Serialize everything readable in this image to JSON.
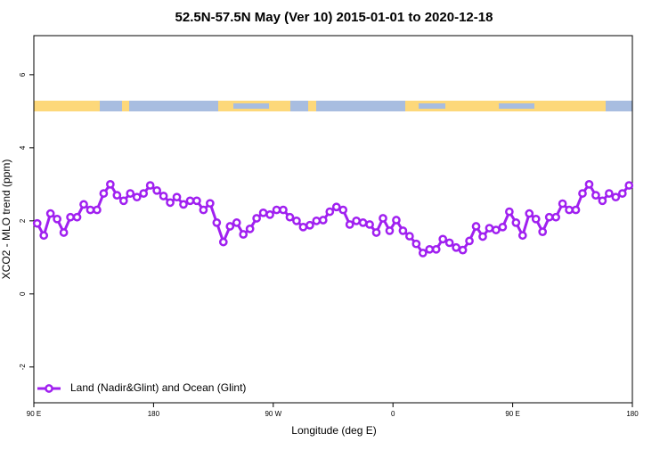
{
  "chart_data": {
    "type": "line",
    "title": "52.5N-57.5N May (Ver 10)   2015-01-01 to 2020-12-18",
    "x_label": "Longitude (deg E)",
    "y_label": "XCO2 - MLO trend (ppm)",
    "x": [
      92.5,
      97.5,
      102.5,
      107.5,
      112.5,
      117.5,
      122.5,
      127.5,
      132.5,
      137.5,
      142.5,
      147.5,
      152.5,
      157.5,
      162.5,
      167.5,
      172.5,
      177.5,
      182.5,
      187.5,
      192.5,
      197.5,
      202.5,
      207.5,
      212.5,
      217.5,
      222.5,
      227.5,
      232.5,
      237.5,
      242.5,
      247.5,
      252.5,
      257.5,
      262.5,
      267.5,
      272.5,
      277.5,
      282.5,
      287.5,
      292.5,
      297.5,
      302.5,
      307.5,
      312.5,
      317.5,
      322.5,
      327.5,
      332.5,
      337.5,
      342.5,
      347.5,
      352.5,
      357.5,
      362.5,
      367.5,
      372.5,
      377.5,
      382.5,
      387.5,
      392.5,
      397.5,
      402.5,
      407.5,
      412.5,
      417.5,
      422.5,
      427.5,
      432.5,
      437.5,
      442.5,
      447.5,
      452.5,
      457.5,
      462.5,
      467.5,
      472.5,
      477.5,
      482.5,
      487.5,
      492.5,
      497.5,
      502.5,
      507.5,
      512.5,
      517.5,
      522.5,
      527.5,
      532.5,
      537.5
    ],
    "xlim": [
      90,
      540
    ],
    "xticks": [
      {
        "value": 90,
        "label": "90 E"
      },
      {
        "value": 180,
        "label": "180"
      },
      {
        "value": 270,
        "label": "90 W"
      },
      {
        "value": 360,
        "label": "0"
      },
      {
        "value": 450,
        "label": "90 E"
      },
      {
        "value": 540,
        "label": "180"
      }
    ],
    "ylim": [
      -2.98,
      7.07
    ],
    "yticks": [
      -2,
      0,
      2,
      4,
      6
    ],
    "legend": "bottom left",
    "series": [
      {
        "name": "Land (Nadir&Glint) and Ocean (Glint)",
        "color": "#a020f0",
        "values": [
          1.93,
          1.6,
          2.2,
          2.05,
          1.68,
          2.1,
          2.1,
          2.45,
          2.3,
          2.3,
          2.75,
          3.0,
          2.7,
          2.55,
          2.75,
          2.65,
          2.75,
          2.97,
          2.83,
          2.68,
          2.5,
          2.65,
          2.45,
          2.55,
          2.55,
          2.3,
          2.48,
          1.95,
          1.42,
          1.85,
          1.95,
          1.63,
          1.78,
          2.07,
          2.22,
          2.17,
          2.3,
          2.3,
          2.1,
          2.0,
          1.83,
          1.88,
          2.0,
          2.02,
          2.25,
          2.38,
          2.3,
          1.9,
          2.0,
          1.95,
          1.9,
          1.68,
          2.07,
          1.73,
          2.02,
          1.73,
          1.58,
          1.37,
          1.12,
          1.22,
          1.22,
          1.5,
          1.4,
          1.27,
          1.2,
          1.45,
          1.85,
          1.57,
          1.8,
          1.75,
          1.83,
          2.25,
          1.95,
          1.6,
          2.2,
          2.05,
          1.7,
          2.1,
          2.1,
          2.47,
          2.3,
          2.3,
          2.75,
          3.0,
          2.7,
          2.55,
          2.75,
          2.65,
          2.75,
          2.97
        ]
      }
    ]
  }
}
